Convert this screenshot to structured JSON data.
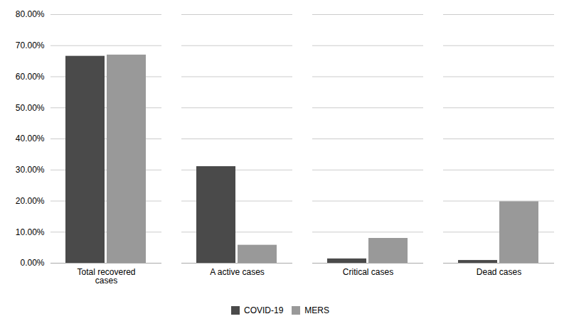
{
  "chart_data": {
    "type": "bar",
    "categories": [
      "Total recovered\ncases",
      "A active cases",
      "Critical cases",
      "Dead cases"
    ],
    "series": [
      {
        "name": "COVID-19",
        "color": "#4a4a4a",
        "values": [
          0.666,
          0.311,
          0.014,
          0.009
        ]
      },
      {
        "name": "MERS",
        "color": "#999999",
        "values": [
          0.67,
          0.058,
          0.08,
          0.198
        ]
      }
    ],
    "ylim": [
      0,
      0.8
    ],
    "yticks": [
      {
        "value": 0.0,
        "label": "0.00%"
      },
      {
        "value": 0.1,
        "label": "10.00%"
      },
      {
        "value": 0.2,
        "label": "20.00%"
      },
      {
        "value": 0.3,
        "label": "30.00%"
      },
      {
        "value": 0.4,
        "label": "40.00%"
      },
      {
        "value": 0.5,
        "label": "50.00%"
      },
      {
        "value": 0.6,
        "label": "60.00%"
      },
      {
        "value": 0.7,
        "label": "70.00%"
      },
      {
        "value": 0.8,
        "label": "80.00%"
      }
    ],
    "grid": true,
    "legend": "bottom"
  }
}
